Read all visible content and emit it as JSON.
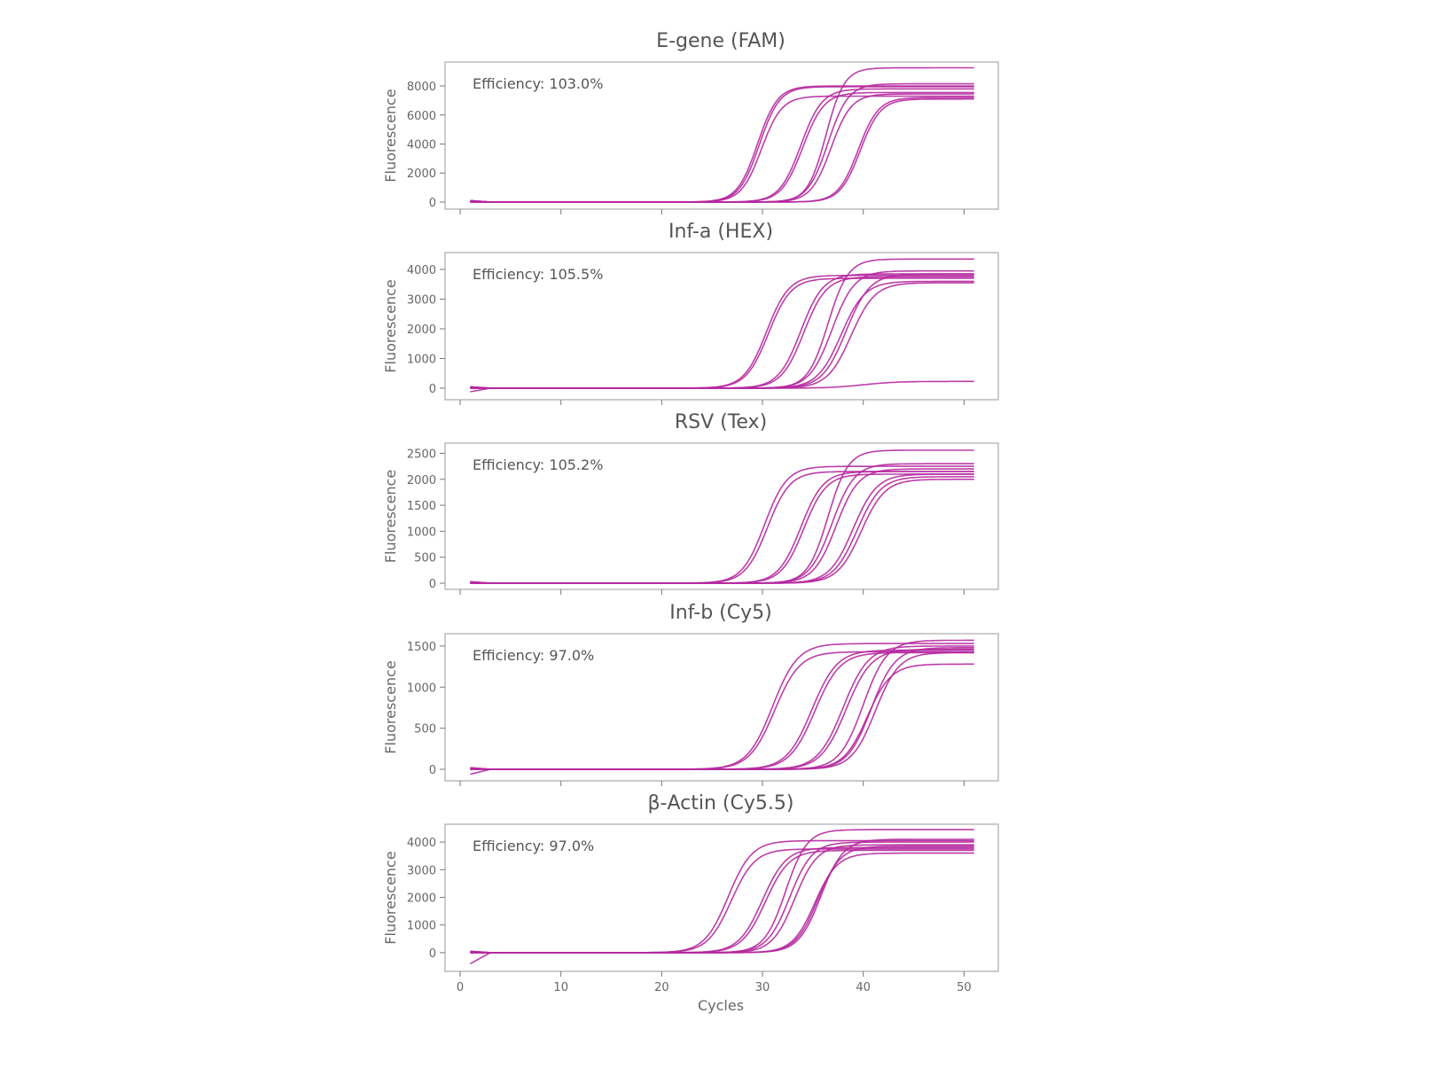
{
  "chart_data": [
    {
      "type": "line",
      "title": "E-gene (FAM)",
      "ylabel": "Fluorescence",
      "xlabel": "",
      "annotation": "Efficiency: 103.0%",
      "ylim": [
        -490,
        9650
      ],
      "xlim": [
        -1.5,
        53.4
      ],
      "yticks": [
        0,
        2000,
        4000,
        6000,
        8000
      ],
      "xticks": [
        0,
        10,
        20,
        30,
        40,
        50
      ],
      "show_xtick_labels": false,
      "series_model": "sigmoid: plateau / (1 + exp(-(cycle - midpoint) * steepness))",
      "series": [
        {
          "midpoint": 29.5,
          "plateau": 8000,
          "steepness": 1.0
        },
        {
          "midpoint": 29.7,
          "plateau": 7950,
          "steepness": 1.0
        },
        {
          "midpoint": 29.9,
          "plateau": 7300,
          "steepness": 1.0
        },
        {
          "midpoint": 33.8,
          "plateau": 7800,
          "steepness": 0.95
        },
        {
          "midpoint": 34.0,
          "plateau": 7550,
          "steepness": 0.95
        },
        {
          "midpoint": 36.3,
          "plateau": 9250,
          "steepness": 1.1
        },
        {
          "midpoint": 36.5,
          "plateau": 8150,
          "steepness": 1.0
        },
        {
          "midpoint": 36.8,
          "plateau": 7450,
          "steepness": 1.0
        },
        {
          "midpoint": 39.5,
          "plateau": 7200,
          "steepness": 1.0
        },
        {
          "midpoint": 39.7,
          "plateau": 7100,
          "steepness": 1.0
        }
      ]
    },
    {
      "type": "line",
      "title": "Inf-a (HEX)",
      "ylabel": "Fluorescence",
      "xlabel": "",
      "annotation": "Efficiency: 105.5%",
      "ylim": [
        -388,
        4567
      ],
      "xlim": [
        -1.5,
        53.4
      ],
      "yticks": [
        0,
        1000,
        2000,
        3000,
        4000
      ],
      "xticks": [
        0,
        10,
        20,
        30,
        40,
        50
      ],
      "show_xtick_labels": false,
      "series_model": "sigmoid: plateau / (1 + exp(-(cycle - midpoint) * steepness))",
      "series": [
        {
          "midpoint": 30.4,
          "plateau": 3800,
          "steepness": 0.9
        },
        {
          "midpoint": 30.6,
          "plateau": 3700,
          "steepness": 0.9
        },
        {
          "midpoint": 33.8,
          "plateau": 3850,
          "steepness": 0.9
        },
        {
          "midpoint": 34.1,
          "plateau": 3750,
          "steepness": 0.9
        },
        {
          "midpoint": 36.5,
          "plateau": 4350,
          "steepness": 1.0
        },
        {
          "midpoint": 36.9,
          "plateau": 3950,
          "steepness": 0.9
        },
        {
          "midpoint": 37.8,
          "plateau": 3600,
          "steepness": 0.85
        },
        {
          "midpoint": 38.3,
          "plateau": 3850,
          "steepness": 0.85
        },
        {
          "midpoint": 38.8,
          "plateau": 3550,
          "steepness": 0.85
        },
        {
          "midpoint": 40.0,
          "plateau": 230,
          "steepness": 0.6,
          "start_dip": -120
        }
      ]
    },
    {
      "type": "line",
      "title": "RSV (Tex)",
      "ylabel": "Fluorescence",
      "xlabel": "",
      "annotation": "Efficiency: 105.2%",
      "ylim": [
        -119,
        2696
      ],
      "xlim": [
        -1.5,
        53.4
      ],
      "yticks": [
        0,
        500,
        1000,
        1500,
        2000,
        2500
      ],
      "xticks": [
        0,
        10,
        20,
        30,
        40,
        50
      ],
      "show_xtick_labels": false,
      "series_model": "sigmoid: plateau / (1 + exp(-(cycle - midpoint) * steepness))",
      "series": [
        {
          "midpoint": 30.2,
          "plateau": 2250,
          "steepness": 0.9
        },
        {
          "midpoint": 30.5,
          "plateau": 2150,
          "steepness": 0.9
        },
        {
          "midpoint": 33.8,
          "plateau": 2150,
          "steepness": 0.9
        },
        {
          "midpoint": 34.1,
          "plateau": 2100,
          "steepness": 0.9
        },
        {
          "midpoint": 36.5,
          "plateau": 2560,
          "steepness": 1.0
        },
        {
          "midpoint": 36.9,
          "plateau": 2300,
          "steepness": 0.9
        },
        {
          "midpoint": 37.3,
          "plateau": 2200,
          "steepness": 0.9
        },
        {
          "midpoint": 39.0,
          "plateau": 2100,
          "steepness": 0.85
        },
        {
          "midpoint": 39.4,
          "plateau": 2050,
          "steepness": 0.85
        },
        {
          "midpoint": 39.8,
          "plateau": 2000,
          "steepness": 0.85
        }
      ]
    },
    {
      "type": "line",
      "title": "Inf-b (Cy5)",
      "ylabel": "Fluorescence",
      "xlabel": "",
      "annotation": "Efficiency: 97.0%",
      "ylim": [
        -140,
        1650
      ],
      "xlim": [
        -1.5,
        53.4
      ],
      "yticks": [
        0,
        500,
        1000,
        1500
      ],
      "xticks": [
        0,
        10,
        20,
        30,
        40,
        50
      ],
      "show_xtick_labels": false,
      "series_model": "sigmoid: plateau / (1 + exp(-(cycle - midpoint) * steepness))",
      "series": [
        {
          "midpoint": 31.0,
          "plateau": 1530,
          "steepness": 0.8
        },
        {
          "midpoint": 31.2,
          "plateau": 1430,
          "steepness": 0.8
        },
        {
          "midpoint": 34.9,
          "plateau": 1450,
          "steepness": 0.8
        },
        {
          "midpoint": 35.2,
          "plateau": 1420,
          "steepness": 0.8
        },
        {
          "midpoint": 38.0,
          "plateau": 1500,
          "steepness": 0.8
        },
        {
          "midpoint": 38.3,
          "plateau": 1460,
          "steepness": 0.8
        },
        {
          "midpoint": 40.0,
          "plateau": 1570,
          "steepness": 0.85
        },
        {
          "midpoint": 40.4,
          "plateau": 1280,
          "steepness": 0.85
        },
        {
          "midpoint": 40.8,
          "plateau": 1480,
          "steepness": 0.85
        },
        {
          "midpoint": 41.2,
          "plateau": 1420,
          "steepness": 0.85,
          "start_dip": -60
        }
      ]
    },
    {
      "type": "line",
      "title": "β-Actin (Cy5.5)",
      "ylabel": "Fluorescence",
      "xlabel": "Cycles",
      "annotation": "Efficiency: 97.0%",
      "ylim": [
        -677,
        4645
      ],
      "xlim": [
        -1.5,
        53.4
      ],
      "yticks": [
        0,
        1000,
        2000,
        3000,
        4000
      ],
      "xticks": [
        0,
        10,
        20,
        30,
        40,
        50
      ],
      "show_xtick_labels": true,
      "series_model": "sigmoid: plateau / (1 + exp(-(cycle - midpoint) * steepness))",
      "series": [
        {
          "midpoint": 26.6,
          "plateau": 4050,
          "steepness": 0.85
        },
        {
          "midpoint": 26.9,
          "plateau": 3750,
          "steepness": 0.85
        },
        {
          "midpoint": 30.0,
          "plateau": 3800,
          "steepness": 0.85
        },
        {
          "midpoint": 30.3,
          "plateau": 3700,
          "steepness": 0.85
        },
        {
          "midpoint": 32.3,
          "plateau": 4450,
          "steepness": 0.95
        },
        {
          "midpoint": 32.7,
          "plateau": 4000,
          "steepness": 0.9
        },
        {
          "midpoint": 33.2,
          "plateau": 3900,
          "steepness": 0.9
        },
        {
          "midpoint": 35.2,
          "plateau": 3600,
          "steepness": 0.9
        },
        {
          "midpoint": 35.5,
          "plateau": 3850,
          "steepness": 0.9
        },
        {
          "midpoint": 35.8,
          "plateau": 4100,
          "steepness": 0.9,
          "start_dip": -400
        }
      ]
    }
  ],
  "colors": {
    "series": "#b5289f",
    "text": "#555555",
    "axis": "#b0b0b0"
  }
}
